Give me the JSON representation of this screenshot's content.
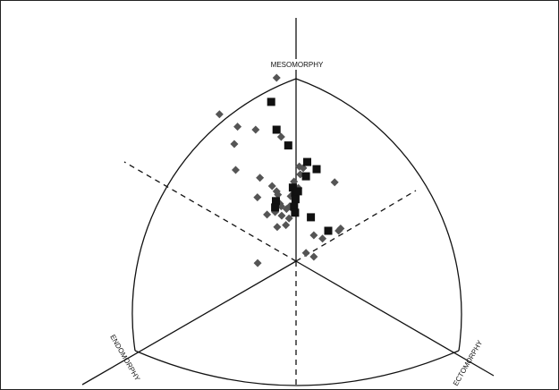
{
  "chart_data": {
    "type": "scatter",
    "axis_labels": {
      "top": "MESOMORPHY",
      "left": "ENDOMORPHY",
      "right": "ECTOMORPHY"
    },
    "grid": false,
    "legend": "none",
    "series": [
      {
        "marker": "diamond",
        "color": "#555555",
        "points": [
          [
            -1.86,
            4.88
          ],
          [
            -7.32,
            3.91
          ],
          [
            -5.59,
            3.58
          ],
          [
            -5.9,
            3.12
          ],
          [
            -3.86,
            3.5
          ],
          [
            -1.42,
            3.31
          ],
          [
            -5.77,
            2.43
          ],
          [
            -3.45,
            2.22
          ],
          [
            -0.2,
            2.12
          ],
          [
            -2.29,
            2.0
          ],
          [
            -1.86,
            1.86
          ],
          [
            -3.69,
            1.7
          ],
          [
            -1.73,
            1.77
          ],
          [
            -0.51,
            1.73
          ],
          [
            -1.54,
            1.53
          ],
          [
            -1.42,
            1.46
          ],
          [
            -0.91,
            1.39
          ],
          [
            -0.6,
            1.46
          ],
          [
            -2.0,
            1.31
          ],
          [
            -0.67,
            1.14
          ],
          [
            -2.77,
            1.24
          ],
          [
            -1.37,
            1.21
          ],
          [
            -0.97,
            0.96
          ],
          [
            -1.8,
            0.91
          ],
          [
            0.31,
            2.52
          ],
          [
            0.68,
            2.48
          ],
          [
            0.4,
            2.31
          ],
          [
            0.22,
            1.95
          ],
          [
            3.69,
            2.1
          ],
          [
            4.26,
            0.87
          ],
          [
            4.07,
            0.81
          ],
          [
            2.53,
            0.6
          ],
          [
            1.7,
            0.69
          ],
          [
            0.95,
            0.22
          ],
          [
            1.7,
            0.12
          ],
          [
            -3.67,
            -0.05
          ]
        ]
      },
      {
        "marker": "square",
        "color": "#111111",
        "points": [
          [
            -2.38,
            4.24
          ],
          [
            -1.86,
            3.5
          ],
          [
            -0.74,
            3.08
          ],
          [
            1.07,
            2.64
          ],
          [
            1.97,
            2.45
          ],
          [
            0.95,
            2.26
          ],
          [
            -0.31,
            1.96
          ],
          [
            -0.09,
            1.82
          ],
          [
            0.19,
            1.86
          ],
          [
            -0.05,
            1.65
          ],
          [
            -1.92,
            1.6
          ],
          [
            -0.19,
            1.45
          ],
          [
            -2.0,
            1.43
          ],
          [
            -0.09,
            1.29
          ],
          [
            1.42,
            1.17
          ],
          [
            3.08,
            0.81
          ]
        ]
      }
    ]
  }
}
